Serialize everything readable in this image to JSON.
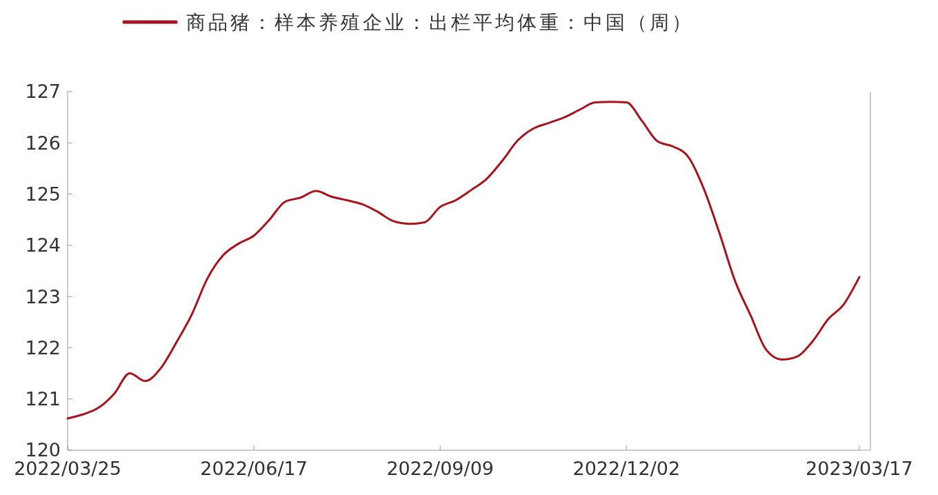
{
  "chart_data": {
    "type": "line",
    "legend": "top",
    "grid": false,
    "x": [
      "2022-03-25",
      "2022-04-01",
      "2022-04-08",
      "2022-04-15",
      "2022-04-22",
      "2022-04-29",
      "2022-05-06",
      "2022-05-13",
      "2022-05-20",
      "2022-05-27",
      "2022-06-03",
      "2022-06-10",
      "2022-06-17",
      "2022-06-24",
      "2022-07-01",
      "2022-07-08",
      "2022-07-15",
      "2022-07-22",
      "2022-07-29",
      "2022-08-05",
      "2022-08-12",
      "2022-08-19",
      "2022-08-26",
      "2022-09-02",
      "2022-09-09",
      "2022-09-16",
      "2022-09-23",
      "2022-09-30",
      "2022-10-07",
      "2022-10-14",
      "2022-10-21",
      "2022-10-28",
      "2022-11-04",
      "2022-11-11",
      "2022-11-18",
      "2022-11-25",
      "2022-12-02",
      "2022-12-09",
      "2022-12-16",
      "2022-12-23",
      "2022-12-30",
      "2023-01-06",
      "2023-01-13",
      "2023-01-20",
      "2023-01-27",
      "2023-02-03",
      "2023-02-10",
      "2023-02-17",
      "2023-02-24",
      "2023-03-03",
      "2023-03-10",
      "2023-03-17"
    ],
    "series": [
      {
        "name": "商品猪：样本养殖企业：出栏平均体重：中国（周）",
        "color": "#a8121c",
        "values": [
          120.62,
          120.7,
          120.83,
          121.1,
          121.5,
          121.35,
          121.6,
          122.1,
          122.65,
          123.35,
          123.8,
          124.03,
          124.19,
          124.5,
          124.85,
          124.93,
          125.06,
          124.95,
          124.88,
          124.8,
          124.65,
          124.47,
          124.42,
          124.45,
          124.75,
          124.88,
          125.08,
          125.3,
          125.65,
          126.05,
          126.28,
          126.39,
          126.5,
          126.65,
          126.79,
          126.8,
          126.79,
          126.43,
          126.03,
          125.93,
          125.72,
          125.09,
          124.23,
          123.3,
          122.63,
          121.96,
          121.77,
          121.83,
          122.13,
          122.56,
          122.85,
          123.38
        ]
      }
    ],
    "xlim": [
      "2022-03-25",
      "2023-03-22"
    ],
    "xticks": [
      {
        "value": "2022-03-25",
        "label": "2022/03/25"
      },
      {
        "value": "2022-06-17",
        "label": "2022/06/17"
      },
      {
        "value": "2022-09-09",
        "label": "2022/09/09"
      },
      {
        "value": "2022-12-02",
        "label": "2022/12/02"
      },
      {
        "value": "2023-03-17",
        "label": "2023/03/17"
      }
    ],
    "ylim": [
      120,
      127
    ],
    "yticks": [
      120,
      121,
      122,
      123,
      124,
      125,
      126,
      127
    ],
    "line_style": "solid",
    "marker": "none"
  }
}
